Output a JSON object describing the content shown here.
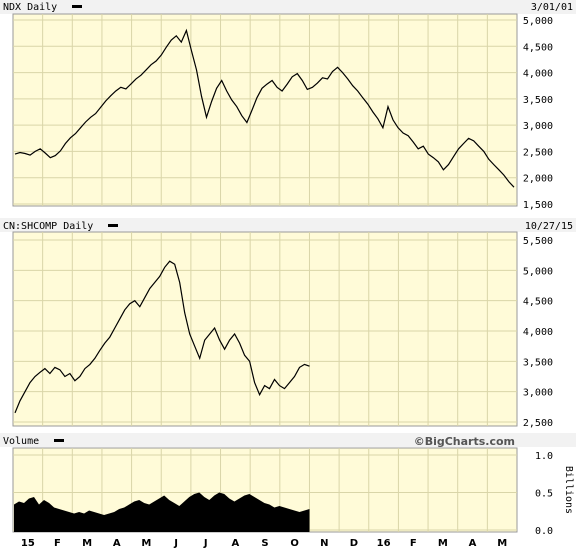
{
  "chart_data": [
    {
      "type": "line",
      "panel": "ndx",
      "title": "NDX Daily",
      "date_label": "3/01/01",
      "y_ticks": [
        1500,
        2000,
        2500,
        3000,
        3500,
        4000,
        4500,
        5000
      ],
      "y_tick_labels": [
        "1,500",
        "2,000",
        "2,500",
        "3,000",
        "3,500",
        "4,000",
        "4,500",
        "5,000"
      ],
      "ylim": [
        1500,
        5000
      ],
      "grid": true,
      "series": [
        {
          "values": [
            2450,
            2480,
            2460,
            2430,
            2500,
            2550,
            2470,
            2380,
            2420,
            2510,
            2650,
            2760,
            2840,
            2950,
            3060,
            3150,
            3220,
            3340,
            3460,
            3560,
            3650,
            3720,
            3690,
            3780,
            3880,
            3950,
            4050,
            4150,
            4220,
            4330,
            4480,
            4620,
            4700,
            4580,
            4800,
            4420,
            4050,
            3550,
            3150,
            3450,
            3700,
            3850,
            3650,
            3480,
            3350,
            3180,
            3050,
            3280,
            3520,
            3700,
            3780,
            3850,
            3720,
            3650,
            3780,
            3920,
            3980,
            3850,
            3680,
            3720,
            3800,
            3900,
            3880,
            4020,
            4100,
            4000,
            3880,
            3750,
            3650,
            3520,
            3400,
            3250,
            3120,
            2950,
            3350,
            3100,
            2950,
            2850,
            2800,
            2680,
            2550,
            2600,
            2450,
            2380,
            2300,
            2150,
            2250,
            2400,
            2550,
            2650,
            2750,
            2700,
            2600,
            2500,
            2350,
            2250,
            2150,
            2050,
            1920,
            1820
          ]
        }
      ]
    },
    {
      "type": "line",
      "panel": "shcomp",
      "title": "CN:SHCOMP Daily",
      "date_label": "10/27/15",
      "y_ticks": [
        2500,
        3000,
        3500,
        4000,
        4500,
        5000,
        5500
      ],
      "y_tick_labels": [
        "2,500",
        "3,000",
        "3,500",
        "4,000",
        "4,500",
        "5,000",
        "5,500"
      ],
      "ylim": [
        2500,
        5500
      ],
      "grid": true,
      "series": [
        {
          "values": [
            2650,
            2850,
            3000,
            3150,
            3250,
            3320,
            3380,
            3300,
            3400,
            3360,
            3250,
            3300,
            3180,
            3250,
            3380,
            3450,
            3550,
            3680,
            3800,
            3900,
            4050,
            4200,
            4350,
            4450,
            4500,
            4400,
            4550,
            4700,
            4800,
            4900,
            5050,
            5150,
            5100,
            4800,
            4300,
            3950,
            3750,
            3550,
            3850,
            3950,
            4050,
            3850,
            3700,
            3850,
            3950,
            3800,
            3600,
            3500,
            3150,
            2950,
            3100,
            3050,
            3200,
            3100,
            3050,
            3150,
            3250,
            3400,
            3450,
            3420
          ]
        }
      ]
    },
    {
      "type": "bar",
      "panel": "volume",
      "title": "Volume",
      "brand": "©BigCharts.com",
      "y_ticks": [
        0,
        0.5,
        1.0
      ],
      "y_tick_labels": [
        "0.0",
        "0.5",
        "1.0"
      ],
      "ylabel": "Billions",
      "ylim": [
        0,
        1.0
      ],
      "grid": true,
      "values": [
        0.34,
        0.38,
        0.36,
        0.42,
        0.44,
        0.34,
        0.4,
        0.36,
        0.3,
        0.28,
        0.26,
        0.24,
        0.22,
        0.24,
        0.22,
        0.26,
        0.24,
        0.22,
        0.2,
        0.22,
        0.24,
        0.28,
        0.3,
        0.34,
        0.38,
        0.4,
        0.36,
        0.34,
        0.38,
        0.42,
        0.46,
        0.4,
        0.36,
        0.32,
        0.38,
        0.44,
        0.48,
        0.5,
        0.44,
        0.4,
        0.46,
        0.5,
        0.48,
        0.42,
        0.38,
        0.42,
        0.46,
        0.48,
        0.44,
        0.4,
        0.36,
        0.34,
        0.3,
        0.32,
        0.3,
        0.28,
        0.26,
        0.24,
        0.26,
        0.28
      ]
    }
  ],
  "x_axis": {
    "labels": [
      "15",
      "F",
      "M",
      "A",
      "M",
      "J",
      "J",
      "A",
      "S",
      "O",
      "N",
      "D",
      "16",
      "F",
      "M",
      "A",
      "M"
    ]
  }
}
